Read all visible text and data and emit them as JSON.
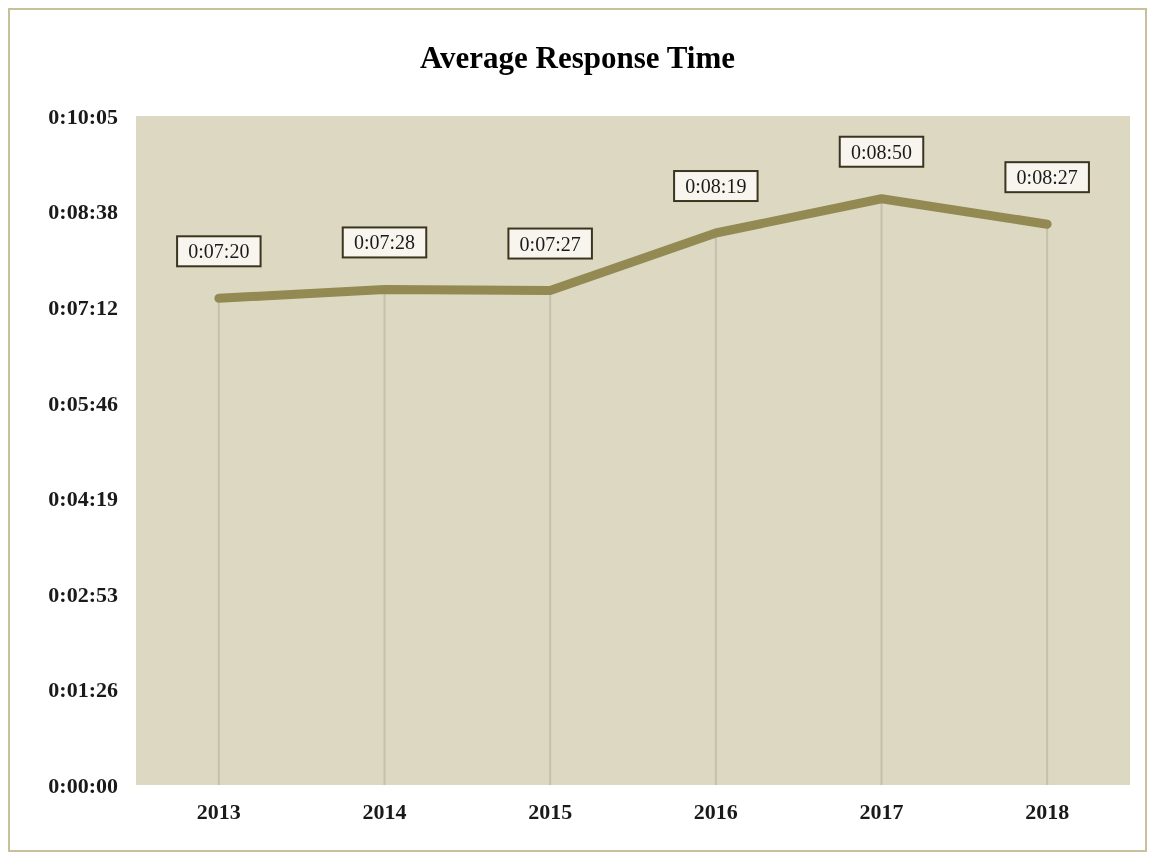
{
  "chart_data": {
    "type": "line",
    "title": "Average Response Time",
    "categories": [
      "2013",
      "2014",
      "2015",
      "2016",
      "2017",
      "2018"
    ],
    "series": [
      {
        "color": "#938953",
        "values": [
          440,
          448,
          447,
          499,
          530,
          507
        ],
        "value_labels": [
          "0:07:20",
          "0:07:28",
          "0:07:27",
          "0:08:19",
          "0:08:50",
          "0:08:27"
        ]
      }
    ],
    "ylim": [
      0,
      604.8
    ],
    "yticks": [
      {
        "value": 0,
        "label": "0:00:00"
      },
      {
        "value": 86.4,
        "label": "0:01:26"
      },
      {
        "value": 172.8,
        "label": "0:02:53"
      },
      {
        "value": 259.2,
        "label": "0:04:19"
      },
      {
        "value": 345.6,
        "label": "0:05:46"
      },
      {
        "value": 432,
        "label": "0:07:12"
      },
      {
        "value": 518.4,
        "label": "0:08:38"
      },
      {
        "value": 604.8,
        "label": "0:10:05"
      }
    ],
    "grid": "x",
    "marker": "none",
    "line_style": "solid"
  }
}
